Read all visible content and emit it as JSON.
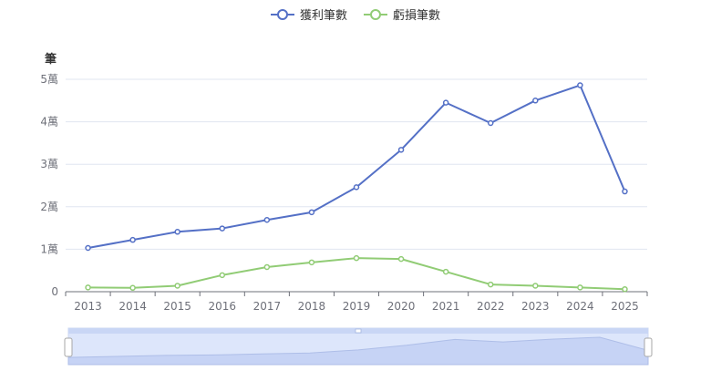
{
  "legend": {
    "profit_label": "獲利筆數",
    "loss_label": "虧損筆數"
  },
  "chart_data": {
    "type": "line",
    "title": "",
    "ylabel": "筆",
    "xlabel": "",
    "categories": [
      "2013",
      "2014",
      "2015",
      "2016",
      "2017",
      "2018",
      "2019",
      "2020",
      "2021",
      "2022",
      "2023",
      "2024",
      "2025"
    ],
    "y_tick_labels": [
      "0",
      "1萬",
      "2萬",
      "3萬",
      "4萬",
      "5萬"
    ],
    "ylim": [
      0,
      50000
    ],
    "grid": true,
    "legend_position": "top-center",
    "series": [
      {
        "name": "獲利筆數",
        "color": "#5470c6",
        "values": [
          10300,
          12200,
          14100,
          14900,
          16900,
          18700,
          24600,
          33400,
          44500,
          39700,
          45000,
          48600,
          23600
        ]
      },
      {
        "name": "虧損筆數",
        "color": "#91cc75",
        "values": [
          1000,
          900,
          1400,
          3900,
          5800,
          6900,
          7900,
          7700,
          4700,
          1700,
          1400,
          1000,
          600
        ]
      }
    ],
    "datazoom": {
      "start_percent": 0,
      "end_percent": 100
    }
  }
}
